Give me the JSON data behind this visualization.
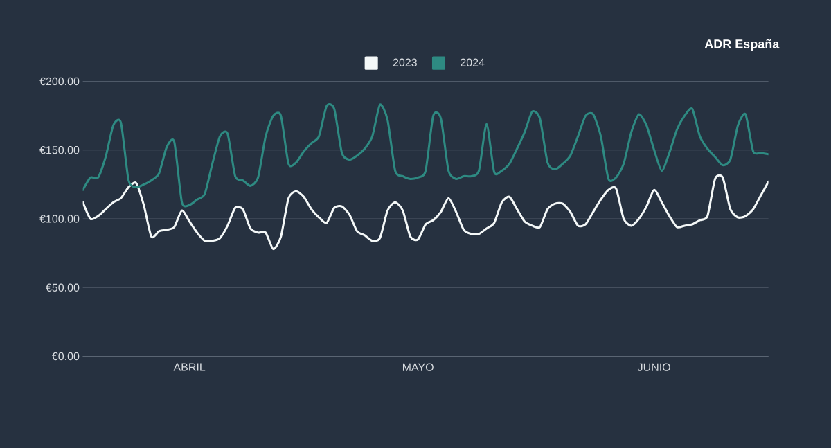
{
  "chart_data": {
    "type": "line",
    "title": "ADR España",
    "categories": [
      null,
      null,
      null,
      null,
      null,
      null,
      null,
      null,
      null,
      null,
      null,
      null,
      null,
      null,
      "ABRIL",
      null,
      null,
      null,
      null,
      null,
      null,
      null,
      null,
      null,
      null,
      null,
      null,
      null,
      null,
      null,
      null,
      null,
      null,
      null,
      null,
      null,
      null,
      null,
      null,
      null,
      null,
      null,
      null,
      null,
      "MAYO",
      null,
      null,
      null,
      null,
      null,
      null,
      null,
      null,
      null,
      null,
      null,
      null,
      null,
      null,
      null,
      null,
      null,
      null,
      null,
      null,
      null,
      null,
      null,
      null,
      null,
      null,
      null,
      null,
      null,
      null,
      "JUNIO",
      null,
      null,
      null,
      null,
      null,
      null,
      null,
      null,
      null,
      null,
      null,
      null,
      null,
      null,
      null
    ],
    "ylim": [
      0,
      200
    ],
    "yticks": [
      {
        "value": 0,
        "label": "€0.00"
      },
      {
        "value": 50,
        "label": "€50.00"
      },
      {
        "value": 100,
        "label": "€100.00"
      },
      {
        "value": 150,
        "label": "€150.00"
      },
      {
        "value": 200,
        "label": "€200.00"
      }
    ],
    "grid": "y",
    "legend": "top",
    "series": [
      {
        "name": "2023",
        "color": "#f4f8f8",
        "values": [
          112,
          100,
          102,
          107,
          112,
          115,
          123,
          126,
          110,
          87,
          91,
          92,
          94,
          106,
          98,
          90,
          84,
          84,
          86,
          95,
          108,
          107,
          93,
          90,
          90,
          78,
          87,
          115,
          120,
          116,
          107,
          101,
          97,
          108,
          109,
          103,
          91,
          88,
          84,
          86,
          106,
          112,
          106,
          87,
          85,
          96,
          99,
          105,
          115,
          105,
          92,
          89,
          89,
          93,
          97,
          112,
          116,
          107,
          98,
          95,
          94,
          107,
          111,
          111,
          105,
          95,
          96,
          105,
          114,
          121,
          122,
          100,
          95,
          100,
          109,
          121,
          112,
          102,
          94,
          95,
          96,
          99,
          102,
          129,
          130,
          107,
          101,
          102,
          107,
          117,
          127
        ]
      },
      {
        "name": "2024",
        "color": "#2e8a82",
        "values": [
          121,
          130,
          130,
          145,
          168,
          170,
          128,
          123,
          125,
          128,
          133,
          152,
          156,
          112,
          110,
          114,
          118,
          140,
          160,
          162,
          131,
          128,
          124,
          130,
          160,
          175,
          175,
          140,
          141,
          149,
          155,
          160,
          182,
          180,
          148,
          143,
          146,
          151,
          160,
          183,
          172,
          135,
          131,
          129,
          130,
          135,
          175,
          173,
          135,
          129,
          131,
          131,
          135,
          169,
          134,
          135,
          140,
          151,
          163,
          178,
          173,
          141,
          136,
          140,
          146,
          160,
          175,
          176,
          160,
          129,
          130,
          140,
          163,
          176,
          168,
          150,
          135,
          148,
          165,
          175,
          180,
          160,
          151,
          145,
          139,
          143,
          168,
          176,
          149,
          148,
          147
        ]
      }
    ]
  }
}
